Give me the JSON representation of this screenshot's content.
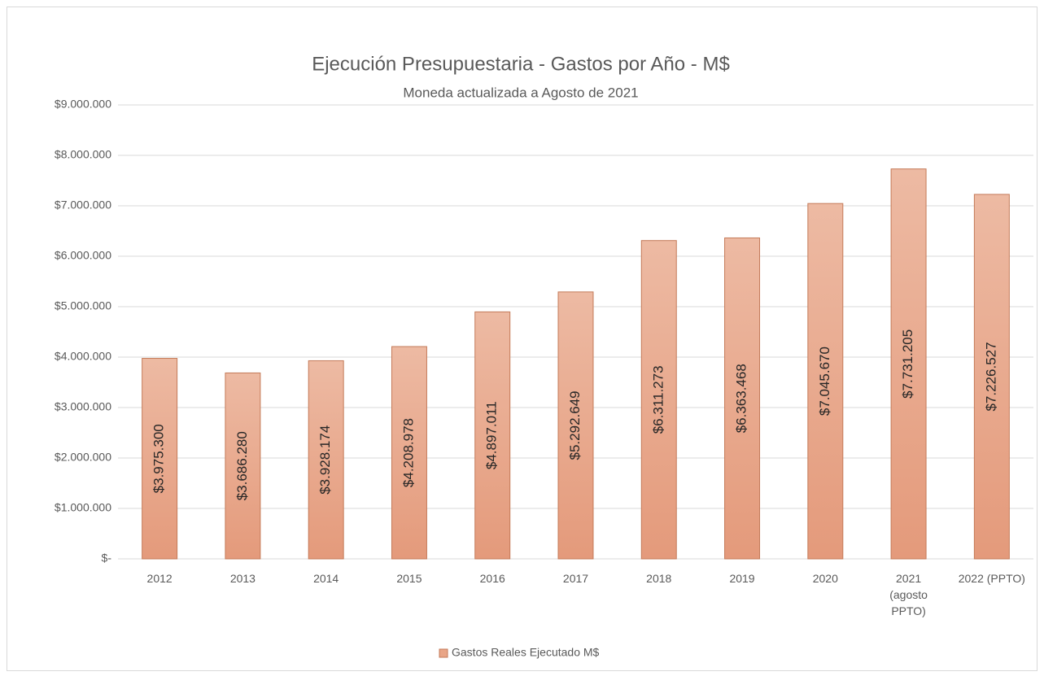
{
  "chart_data": {
    "type": "bar",
    "title": "Ejecución  Presupuestaria  - Gastos por Año - M$",
    "subtitle": "Moneda  actualizada  a Agosto  de 2021",
    "categories": [
      "2012",
      "2013",
      "2014",
      "2015",
      "2016",
      "2017",
      "2018",
      "2019",
      "2020",
      "2021 (agosto PPTO)",
      "2022 (PPTO)"
    ],
    "series": [
      {
        "name": "Gastos Reales Ejecutado M$",
        "color": "#e9a587",
        "values": [
          3975300,
          3686280,
          3928174,
          4208978,
          4897011,
          5292649,
          6311273,
          6363468,
          7045670,
          7731205,
          7226527
        ],
        "value_labels": [
          "$3.975.300",
          "$3.686.280",
          "$3.928.174",
          "$4.208.978",
          "$4.897.011",
          "$5.292.649",
          "$6.311.273",
          "$6.363.468",
          "$7.045.670",
          "$7.731.205",
          "$7.226.527"
        ]
      }
    ],
    "ylim": [
      0,
      9000000
    ],
    "yticks": [
      {
        "value": 0,
        "label": "$-"
      },
      {
        "value": 1000000,
        "label": "$1.000.000"
      },
      {
        "value": 2000000,
        "label": "$2.000.000"
      },
      {
        "value": 3000000,
        "label": "$3.000.000"
      },
      {
        "value": 4000000,
        "label": "$4.000.000"
      },
      {
        "value": 5000000,
        "label": "$5.000.000"
      },
      {
        "value": 6000000,
        "label": "$6.000.000"
      },
      {
        "value": 7000000,
        "label": "$7.000.000"
      },
      {
        "value": 8000000,
        "label": "$8.000.000"
      },
      {
        "value": 9000000,
        "label": "$9.000.000"
      }
    ],
    "grid": true,
    "legend": "bottom"
  }
}
